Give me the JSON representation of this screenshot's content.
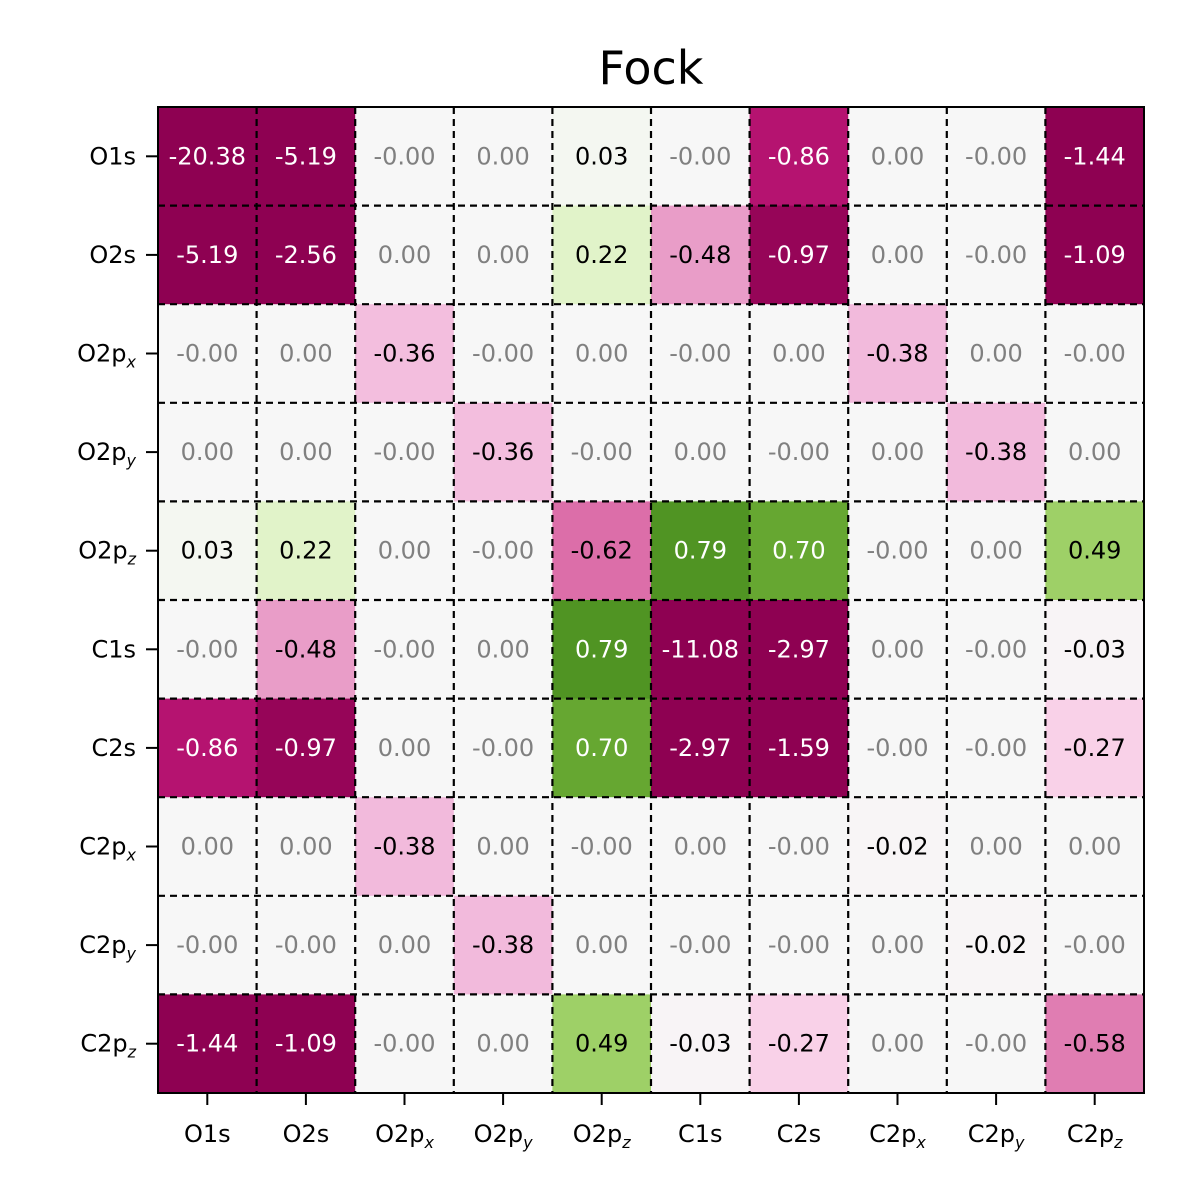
{
  "chart_data": {
    "type": "heatmap",
    "title": "Fock",
    "labels": [
      {
        "main": "O1s",
        "sub": ""
      },
      {
        "main": "O2s",
        "sub": ""
      },
      {
        "main": "O2p",
        "sub": "x"
      },
      {
        "main": "O2p",
        "sub": "y"
      },
      {
        "main": "O2p",
        "sub": "z"
      },
      {
        "main": "C1s",
        "sub": ""
      },
      {
        "main": "C2s",
        "sub": ""
      },
      {
        "main": "C2p",
        "sub": "x"
      },
      {
        "main": "C2p",
        "sub": "y"
      },
      {
        "main": "C2p",
        "sub": "z"
      }
    ],
    "value_labels": [
      [
        "-20.38",
        "-5.19",
        "-0.00",
        "0.00",
        "0.03",
        "-0.00",
        "-0.86",
        "0.00",
        "-0.00",
        "-1.44"
      ],
      [
        "-5.19",
        "-2.56",
        "0.00",
        "0.00",
        "0.22",
        "-0.48",
        "-0.97",
        "0.00",
        "-0.00",
        "-1.09"
      ],
      [
        "-0.00",
        "0.00",
        "-0.36",
        "-0.00",
        "0.00",
        "-0.00",
        "0.00",
        "-0.38",
        "0.00",
        "-0.00"
      ],
      [
        "0.00",
        "0.00",
        "-0.00",
        "-0.36",
        "-0.00",
        "0.00",
        "-0.00",
        "0.00",
        "-0.38",
        "0.00"
      ],
      [
        "0.03",
        "0.22",
        "0.00",
        "-0.00",
        "-0.62",
        "0.79",
        "0.70",
        "-0.00",
        "0.00",
        "0.49"
      ],
      [
        "-0.00",
        "-0.48",
        "-0.00",
        "0.00",
        "0.79",
        "-11.08",
        "-2.97",
        "0.00",
        "-0.00",
        "-0.03"
      ],
      [
        "-0.86",
        "-0.97",
        "0.00",
        "-0.00",
        "0.70",
        "-2.97",
        "-1.59",
        "-0.00",
        "-0.00",
        "-0.27"
      ],
      [
        "0.00",
        "0.00",
        "-0.38",
        "0.00",
        "-0.00",
        "0.00",
        "-0.00",
        "-0.02",
        "0.00",
        "0.00"
      ],
      [
        "-0.00",
        "-0.00",
        "0.00",
        "-0.38",
        "0.00",
        "-0.00",
        "-0.00",
        "0.00",
        "-0.02",
        "-0.00"
      ],
      [
        "-1.44",
        "-1.09",
        "-0.00",
        "0.00",
        "0.49",
        "-0.03",
        "-0.27",
        "0.00",
        "-0.00",
        "-0.58"
      ]
    ],
    "colormap": "PiYG",
    "color_range": [
      -1,
      1
    ],
    "grid": "dashed",
    "colors": {
      "negative_extreme": "#8e0152",
      "neutral": "#f7f7f7",
      "positive_extreme": "#276419",
      "near_zero_text": "#808080",
      "dark_cell_text": "#ffffff",
      "light_cell_text": "#000000"
    }
  }
}
